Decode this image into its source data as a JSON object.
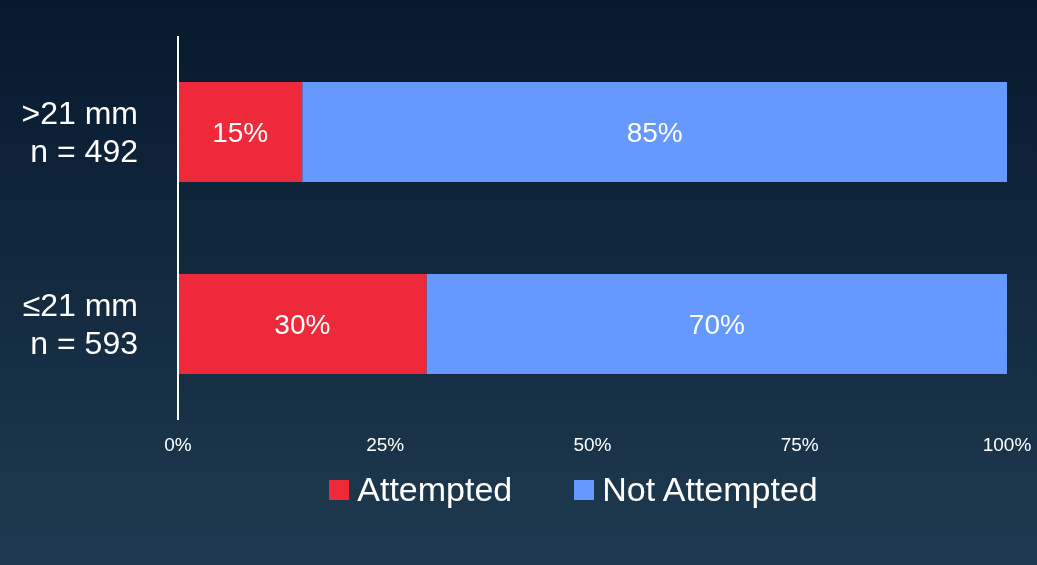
{
  "chart_data": {
    "type": "bar",
    "orientation": "horizontal",
    "stacked": true,
    "categories": [
      ">21 mm\nn = 492",
      "≤21 mm\nn = 593"
    ],
    "series": [
      {
        "name": "Attempted",
        "color": "#ee2a3a",
        "values": [
          15,
          30
        ],
        "value_labels": [
          "15%",
          "30%"
        ]
      },
      {
        "name": "Not Attempted",
        "color": "#6699ff",
        "values": [
          85,
          70
        ],
        "value_labels": [
          "85%",
          "70%"
        ]
      }
    ],
    "xlim": [
      0,
      100
    ],
    "xticks": [
      {
        "value": 0,
        "label": "0%"
      },
      {
        "value": 25,
        "label": "25%"
      },
      {
        "value": 50,
        "label": "50%"
      },
      {
        "value": 75,
        "label": "75%"
      },
      {
        "value": 100,
        "label": "100%"
      }
    ],
    "grid": false,
    "legend": "bottom"
  }
}
